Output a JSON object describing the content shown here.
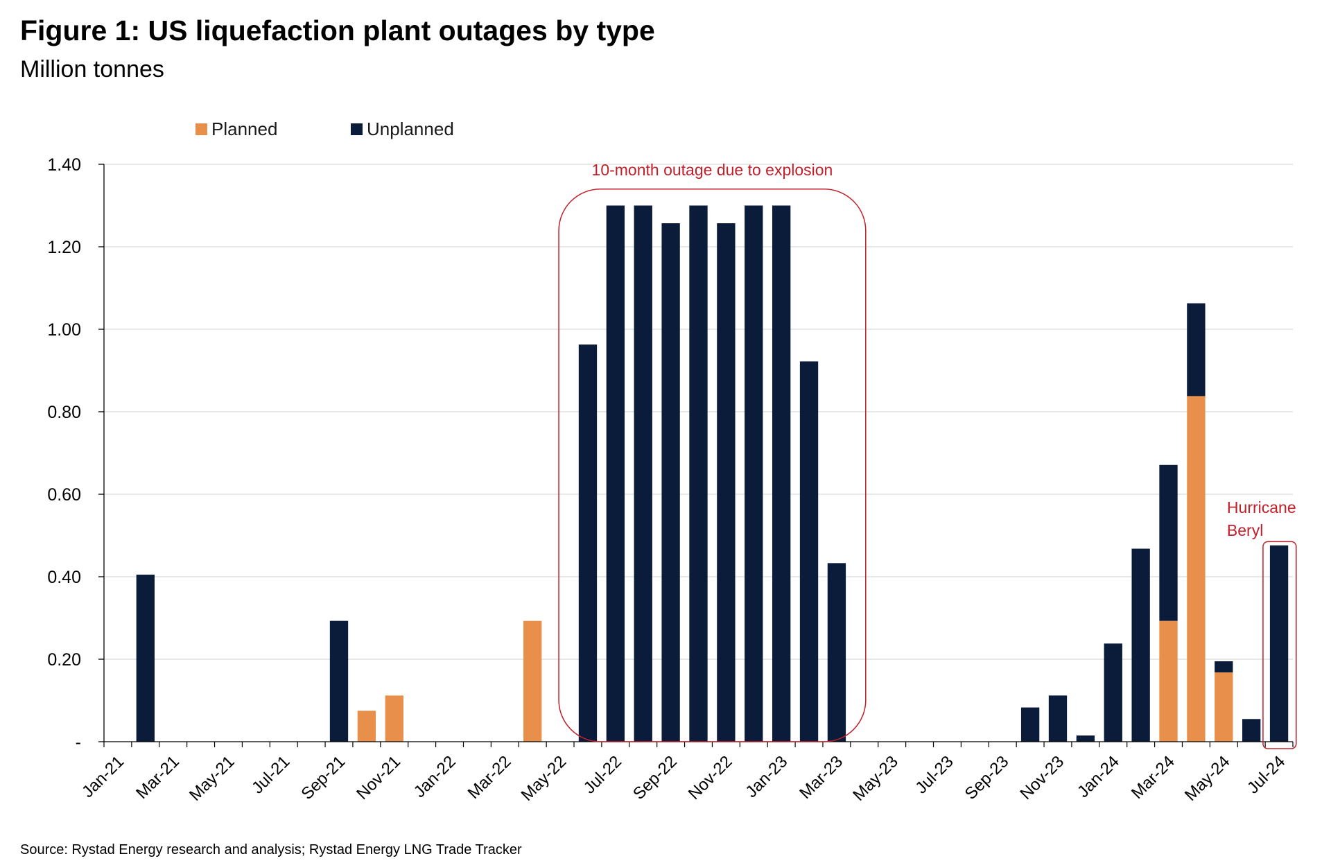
{
  "colors": {
    "planned": "#E8904B",
    "unplanned": "#0B1B3A",
    "annotation": "#C0202A",
    "grid": "#D9D9D9",
    "axis": "#000000"
  },
  "chart_data": {
    "type": "bar",
    "stacked": true,
    "title": "Figure 1: US liquefaction plant outages by type",
    "subtitle": "Million tonnes",
    "source": "Source: Rystad Energy research and analysis; Rystad Energy LNG Trade Tracker",
    "ylim": [
      0,
      1.4
    ],
    "yticks": [
      0,
      0.2,
      0.4,
      0.6,
      0.8,
      1.0,
      1.2,
      1.4
    ],
    "ytick_labels": [
      "-",
      "0.20",
      "0.40",
      "0.60",
      "0.80",
      "1.00",
      "1.20",
      "1.40"
    ],
    "grid": true,
    "legend_position": "top-left",
    "categories": [
      "Jan-21",
      "Feb-21",
      "Mar-21",
      "Apr-21",
      "May-21",
      "Jun-21",
      "Jul-21",
      "Aug-21",
      "Sep-21",
      "Oct-21",
      "Nov-21",
      "Dec-21",
      "Jan-22",
      "Feb-22",
      "Mar-22",
      "Apr-22",
      "May-22",
      "Jun-22",
      "Jul-22",
      "Aug-22",
      "Sep-22",
      "Oct-22",
      "Nov-22",
      "Dec-22",
      "Jan-23",
      "Feb-23",
      "Mar-23",
      "Apr-23",
      "May-23",
      "Jun-23",
      "Jul-23",
      "Aug-23",
      "Sep-23",
      "Oct-23",
      "Nov-23",
      "Dec-23",
      "Jan-24",
      "Feb-24",
      "Mar-24",
      "Apr-24",
      "May-24",
      "Jun-24",
      "Jul-24"
    ],
    "xtick_labels": [
      "Jan-21",
      "Mar-21",
      "May-21",
      "Jul-21",
      "Sep-21",
      "Nov-21",
      "Jan-22",
      "Mar-22",
      "May-22",
      "Jul-22",
      "Sep-22",
      "Nov-22",
      "Jan-23",
      "Mar-23",
      "May-23",
      "Jul-23",
      "Sep-23",
      "Nov-23",
      "Jan-24",
      "Mar-24",
      "May-24",
      "Jul-24"
    ],
    "series": [
      {
        "name": "Planned",
        "values": [
          0,
          0,
          0,
          0,
          0,
          0,
          0,
          0,
          0,
          0.075,
          0.112,
          0,
          0,
          0,
          0,
          0.293,
          0,
          0,
          0,
          0,
          0,
          0,
          0,
          0,
          0,
          0,
          0,
          0,
          0,
          0,
          0,
          0,
          0,
          0,
          0,
          0,
          0,
          0,
          0.293,
          0.838,
          0.168,
          0,
          0
        ]
      },
      {
        "name": "Unplanned",
        "values": [
          0,
          0.405,
          0,
          0,
          0,
          0,
          0,
          0,
          0.293,
          0,
          0,
          0,
          0,
          0,
          0,
          0,
          0,
          0.963,
          1.3,
          1.3,
          1.257,
          1.3,
          1.257,
          1.3,
          1.3,
          0.922,
          0.433,
          0,
          0,
          0,
          0,
          0,
          0,
          0.083,
          0.112,
          0.015,
          0.238,
          0.468,
          0.378,
          0.225,
          0.027,
          0.055,
          0.476
        ]
      }
    ],
    "annotations": [
      {
        "text": "10-month outage due to explosion",
        "from": "Jun-22",
        "to": "Mar-23",
        "ymax": 1.4
      },
      {
        "text_lines": [
          "Hurricane",
          "Beryl"
        ],
        "from": "Jul-24",
        "to": "Jul-24",
        "ymax": 0.48
      }
    ]
  }
}
